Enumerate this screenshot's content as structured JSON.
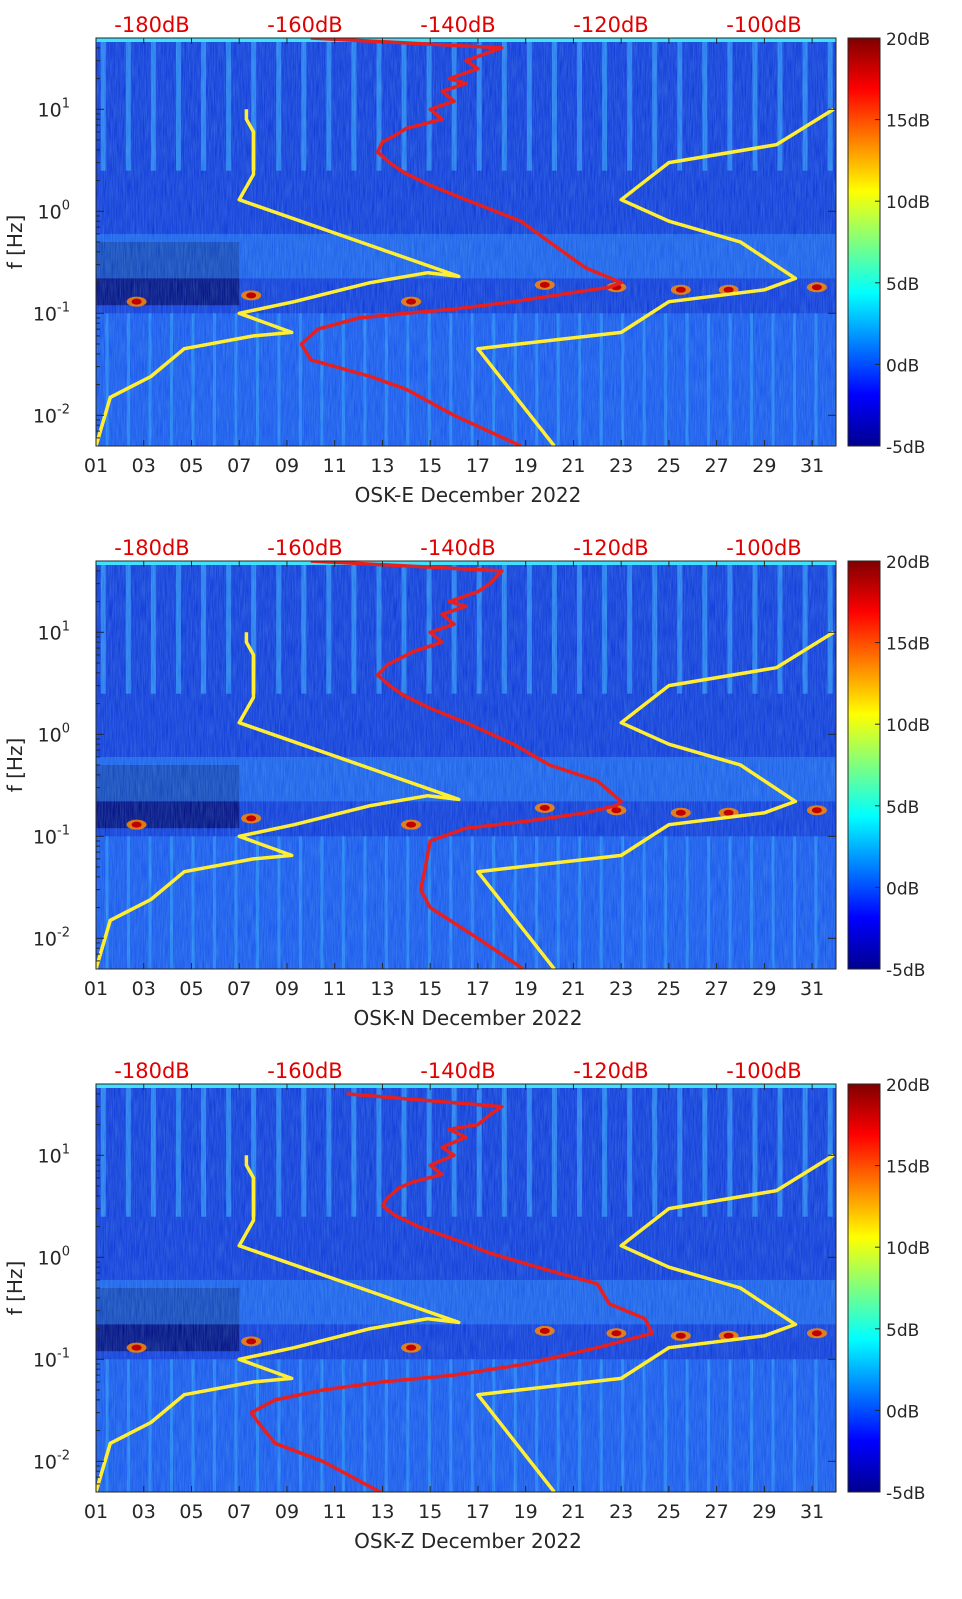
{
  "chart_data": [
    {
      "type": "heatmap",
      "component": "E",
      "xlabel": "OSK-E December 2022",
      "ylabel": "f [Hz]",
      "x_ticks": [
        "01",
        "03",
        "05",
        "07",
        "09",
        "11",
        "13",
        "15",
        "17",
        "19",
        "21",
        "23",
        "25",
        "27",
        "29",
        "31"
      ],
      "y_ticks": [
        "10^-2",
        "10^-1",
        "10^0",
        "10^1"
      ],
      "y_scale": "log",
      "xlim": [
        1,
        32
      ],
      "ylim_hz": [
        0.005,
        50
      ],
      "colorbar_ticks": [
        "20dB",
        "15dB",
        "10dB",
        "5dB",
        "0dB",
        "-5dB"
      ],
      "colorbar_range_db": [
        -5,
        20
      ],
      "top_axis_ticks": [
        "-180dB",
        "-160dB",
        "-140dB",
        "-120dB",
        "-100dB"
      ],
      "top_axis_color": "#e00000",
      "series": [
        {
          "color": "#ffee33",
          "x": [
            1.0,
            1.6,
            3.3,
            4.7,
            7.6,
            9.2,
            7.0,
            9.3,
            12.5,
            14.9,
            16.2,
            7.0,
            7.6,
            7.6,
            7.3,
            7.3
          ],
          "f_hz": [
            0.005,
            0.015,
            0.024,
            0.045,
            0.06,
            0.065,
            0.1,
            0.13,
            0.2,
            0.25,
            0.23,
            1.3,
            2.3,
            6,
            8,
            10
          ]
        },
        {
          "color": "#ffee33",
          "x": [
            20.2,
            17.0,
            23.0,
            25.0,
            29.0,
            30.3,
            28.0,
            25.0,
            23.0,
            25.0,
            29.5,
            31.9
          ],
          "f_hz": [
            0.005,
            0.045,
            0.065,
            0.13,
            0.17,
            0.22,
            0.5,
            0.8,
            1.3,
            3.0,
            4.5,
            10
          ]
        },
        {
          "color": "#e62020",
          "x": [
            18.8,
            16.0,
            14.0,
            12.5,
            10.0,
            9.6,
            10.3,
            12.0,
            14.0,
            16.0,
            18.5,
            21.0,
            22.5,
            23.0,
            21.5,
            20.0,
            18.8,
            16.5,
            15.0,
            13.9,
            13.3,
            12.8,
            13.0,
            13.5,
            14.0,
            15.5,
            15.0,
            16.0,
            15.5,
            16.5,
            15.8,
            17.0,
            16.5,
            18.0,
            10.0
          ],
          "f_hz": [
            0.005,
            0.01,
            0.018,
            0.024,
            0.035,
            0.05,
            0.07,
            0.09,
            0.1,
            0.11,
            0.13,
            0.16,
            0.18,
            0.2,
            0.28,
            0.5,
            0.8,
            1.3,
            1.8,
            2.4,
            3.0,
            3.8,
            4.8,
            5.5,
            6.5,
            8,
            10,
            12,
            15,
            18,
            20,
            25,
            30,
            40,
            50
          ]
        }
      ]
    },
    {
      "type": "heatmap",
      "component": "N",
      "xlabel": "OSK-N December 2022",
      "ylabel": "f [Hz]",
      "x_ticks": [
        "01",
        "03",
        "05",
        "07",
        "09",
        "11",
        "13",
        "15",
        "17",
        "19",
        "21",
        "23",
        "25",
        "27",
        "29",
        "31"
      ],
      "y_ticks": [
        "10^-2",
        "10^-1",
        "10^0",
        "10^1"
      ],
      "y_scale": "log",
      "xlim": [
        1,
        32
      ],
      "ylim_hz": [
        0.005,
        50
      ],
      "colorbar_ticks": [
        "20dB",
        "15dB",
        "10dB",
        "5dB",
        "0dB",
        "-5dB"
      ],
      "colorbar_range_db": [
        -5,
        20
      ],
      "top_axis_ticks": [
        "-180dB",
        "-160dB",
        "-140dB",
        "-120dB",
        "-100dB"
      ],
      "top_axis_color": "#e00000",
      "series": [
        {
          "color": "#ffee33",
          "x": [
            1.0,
            1.6,
            3.3,
            4.7,
            7.6,
            9.2,
            7.0,
            9.3,
            12.5,
            14.9,
            16.2,
            7.0,
            7.6,
            7.6,
            7.3,
            7.3
          ],
          "f_hz": [
            0.005,
            0.015,
            0.024,
            0.045,
            0.06,
            0.065,
            0.1,
            0.13,
            0.2,
            0.25,
            0.23,
            1.3,
            2.3,
            6,
            8,
            10
          ]
        },
        {
          "color": "#ffee33",
          "x": [
            20.2,
            17.0,
            23.0,
            25.0,
            29.0,
            30.3,
            28.0,
            25.0,
            23.0,
            25.0,
            29.5,
            31.9
          ],
          "f_hz": [
            0.005,
            0.045,
            0.065,
            0.13,
            0.17,
            0.22,
            0.5,
            0.8,
            1.3,
            3.0,
            4.5,
            10
          ]
        },
        {
          "color": "#e62020",
          "x": [
            18.9,
            17.0,
            15.0,
            14.6,
            14.8,
            15.0,
            16.5,
            19.0,
            21.5,
            22.8,
            23.0,
            22.0,
            20.0,
            18.5,
            16.5,
            15.0,
            13.9,
            13.3,
            12.8,
            13.2,
            13.7,
            14.3,
            15.5,
            15.0,
            16.0,
            15.5,
            16.5,
            15.8,
            17.0,
            17.5,
            18.0,
            10.0
          ],
          "f_hz": [
            0.005,
            0.01,
            0.02,
            0.03,
            0.05,
            0.09,
            0.12,
            0.14,
            0.17,
            0.2,
            0.22,
            0.35,
            0.5,
            0.8,
            1.3,
            1.8,
            2.4,
            3.0,
            3.8,
            4.8,
            5.5,
            6.5,
            8,
            10,
            12,
            15,
            18,
            20,
            25,
            30,
            40,
            50
          ]
        }
      ]
    },
    {
      "type": "heatmap",
      "component": "Z",
      "xlabel": "OSK-Z December 2022",
      "ylabel": "f [Hz]",
      "x_ticks": [
        "01",
        "03",
        "05",
        "07",
        "09",
        "11",
        "13",
        "15",
        "17",
        "19",
        "21",
        "23",
        "25",
        "27",
        "29",
        "31"
      ],
      "y_ticks": [
        "10^-2",
        "10^-1",
        "10^0",
        "10^1"
      ],
      "y_scale": "log",
      "xlim": [
        1,
        32
      ],
      "ylim_hz": [
        0.005,
        50
      ],
      "colorbar_ticks": [
        "20dB",
        "15dB",
        "10dB",
        "5dB",
        "0dB",
        "-5dB"
      ],
      "colorbar_range_db": [
        -5,
        20
      ],
      "top_axis_ticks": [
        "-180dB",
        "-160dB",
        "-140dB",
        "-120dB",
        "-100dB"
      ],
      "top_axis_color": "#e00000",
      "series": [
        {
          "color": "#ffee33",
          "x": [
            1.0,
            1.6,
            3.3,
            4.7,
            7.6,
            9.2,
            7.0,
            9.3,
            12.5,
            14.9,
            16.2,
            7.0,
            7.6,
            7.6,
            7.3,
            7.3
          ],
          "f_hz": [
            0.005,
            0.015,
            0.024,
            0.045,
            0.06,
            0.065,
            0.1,
            0.13,
            0.2,
            0.25,
            0.23,
            1.3,
            2.3,
            6,
            8,
            10
          ]
        },
        {
          "color": "#ffee33",
          "x": [
            20.2,
            17.0,
            23.0,
            25.0,
            29.0,
            30.3,
            28.0,
            25.0,
            23.0,
            25.0,
            29.5,
            31.9
          ],
          "f_hz": [
            0.005,
            0.045,
            0.065,
            0.13,
            0.17,
            0.22,
            0.5,
            0.8,
            1.3,
            3.0,
            4.5,
            10
          ]
        },
        {
          "color": "#e62020",
          "x": [
            12.9,
            10.5,
            8.5,
            7.8,
            7.5,
            8.5,
            10.5,
            13.0,
            16.0,
            19.0,
            22.0,
            24.3,
            24.0,
            22.5,
            22.0,
            19.5,
            17.5,
            16.0,
            14.5,
            13.5,
            13.0,
            13.2,
            13.7,
            14.3,
            15.5,
            15.0,
            16.0,
            15.5,
            16.5,
            15.8,
            17.0,
            17.5,
            18.0,
            11.5
          ],
          "f_hz": [
            0.005,
            0.01,
            0.015,
            0.024,
            0.03,
            0.04,
            0.05,
            0.06,
            0.07,
            0.09,
            0.13,
            0.18,
            0.25,
            0.35,
            0.55,
            0.8,
            1.1,
            1.5,
            2.0,
            2.6,
            3.2,
            3.8,
            4.8,
            5.5,
            6.5,
            8,
            10,
            12,
            15,
            18,
            20,
            25,
            30,
            40
          ]
        }
      ]
    }
  ]
}
